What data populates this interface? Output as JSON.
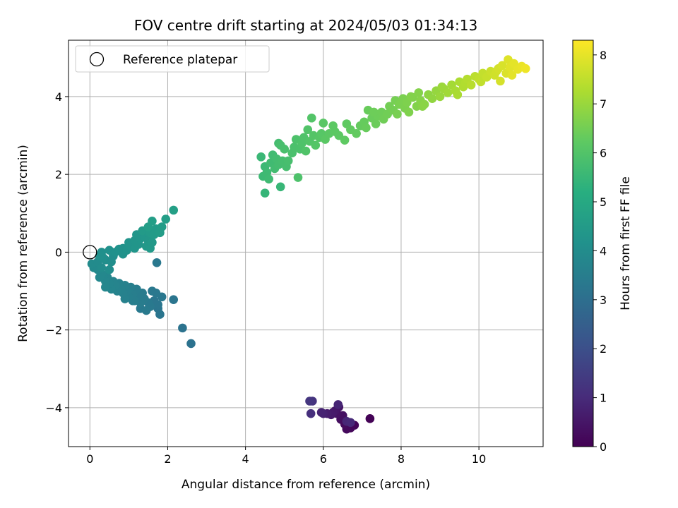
{
  "chart_data": {
    "type": "scatter",
    "title": "FOV centre drift starting at 2024/05/03 01:34:13",
    "xlabel": "Angular distance from reference (arcmin)",
    "ylabel": "Rotation from reference (arcmin)",
    "xlim": [
      -0.55,
      11.65
    ],
    "ylim": [
      -5.0,
      5.45
    ],
    "xticks": [
      0,
      2,
      4,
      6,
      8,
      10
    ],
    "yticks": [
      -4,
      -2,
      0,
      2,
      4
    ],
    "grid": true,
    "legend": {
      "location": "upper-left",
      "entries": [
        "Reference platepar"
      ]
    },
    "reference_point": {
      "x": 0,
      "y": 0,
      "label": "Reference platepar"
    },
    "colorbar": {
      "label": "Hours from first FF file",
      "colormap": "viridis",
      "range": [
        0,
        8.3
      ],
      "ticks": [
        0,
        1,
        2,
        3,
        4,
        5,
        6,
        7,
        8
      ]
    },
    "series": [
      {
        "points": [
          [
            7.2,
            -4.28,
            0.05
          ],
          [
            6.8,
            -4.45,
            0.1
          ],
          [
            6.7,
            -4.52,
            0.15
          ],
          [
            6.6,
            -4.55,
            0.2
          ],
          [
            6.55,
            -4.42,
            0.25
          ],
          [
            6.45,
            -4.3,
            0.3
          ],
          [
            6.5,
            -4.2,
            0.35
          ],
          [
            6.35,
            -4.15,
            0.4
          ],
          [
            6.4,
            -3.98,
            0.45
          ],
          [
            6.3,
            -4.08,
            0.5
          ],
          [
            6.25,
            -4.12,
            0.55
          ],
          [
            6.2,
            -4.18,
            0.6
          ],
          [
            6.1,
            -4.15,
            0.65
          ],
          [
            6.0,
            -4.15,
            0.75
          ],
          [
            5.95,
            -4.12,
            0.8
          ],
          [
            6.38,
            -3.92,
            0.85
          ],
          [
            6.6,
            -4.35,
            0.9
          ],
          [
            6.7,
            -4.38,
            0.95
          ],
          [
            5.68,
            -4.15,
            1.1
          ],
          [
            5.72,
            -3.83,
            1.2
          ],
          [
            5.65,
            -3.83,
            1.3
          ],
          [
            2.6,
            -2.35,
            3.1
          ],
          [
            2.38,
            -1.95,
            3.15
          ],
          [
            2.15,
            -1.22,
            3.2
          ],
          [
            1.8,
            -1.6,
            3.22
          ],
          [
            1.75,
            -1.35,
            3.25
          ],
          [
            1.85,
            -1.15,
            3.28
          ],
          [
            1.7,
            -1.05,
            3.3
          ],
          [
            1.6,
            -1.0,
            3.32
          ],
          [
            1.55,
            -1.4,
            3.34
          ],
          [
            1.5,
            -1.3,
            3.36
          ],
          [
            1.45,
            -1.5,
            3.38
          ],
          [
            1.4,
            -1.2,
            3.4
          ],
          [
            1.35,
            -1.05,
            3.42
          ],
          [
            1.3,
            -1.3,
            3.44
          ],
          [
            1.25,
            -1.15,
            3.46
          ],
          [
            1.2,
            -0.95,
            3.48
          ],
          [
            1.15,
            -1.25,
            3.5
          ],
          [
            1.1,
            -1.1,
            3.52
          ],
          [
            1.05,
            -0.9,
            3.54
          ],
          [
            1.0,
            -1.15,
            3.56
          ],
          [
            0.95,
            -1.0,
            3.58
          ],
          [
            0.9,
            -0.85,
            3.6
          ],
          [
            0.85,
            -1.05,
            3.62
          ],
          [
            0.8,
            -0.95,
            3.64
          ],
          [
            0.75,
            -0.8,
            3.66
          ],
          [
            0.7,
            -1.0,
            3.68
          ],
          [
            0.65,
            -0.85,
            3.7
          ],
          [
            0.6,
            -0.75,
            3.72
          ],
          [
            0.55,
            -0.95,
            3.74
          ],
          [
            0.5,
            -0.8,
            3.76
          ],
          [
            0.45,
            -0.65,
            3.78
          ],
          [
            0.4,
            -0.75,
            3.8
          ],
          [
            0.35,
            -0.6,
            3.82
          ],
          [
            0.3,
            -0.55,
            3.84
          ],
          [
            0.25,
            -0.65,
            3.86
          ],
          [
            0.2,
            -0.45,
            3.88
          ],
          [
            0.15,
            -0.35,
            3.9
          ],
          [
            0.1,
            -0.4,
            3.92
          ],
          [
            0.05,
            -0.3,
            3.94
          ],
          [
            0.2,
            -0.25,
            3.96
          ],
          [
            0.3,
            -0.4,
            3.98
          ],
          [
            0.4,
            -0.2,
            4.0
          ],
          [
            0.5,
            -0.45,
            4.02
          ],
          [
            0.55,
            -0.25,
            4.04
          ],
          [
            0.6,
            -0.1,
            4.06
          ],
          [
            0.35,
            -0.15,
            4.08
          ],
          [
            0.25,
            -0.1,
            4.1
          ],
          [
            0.3,
            0.0,
            4.12
          ],
          [
            0.5,
            0.05,
            4.14
          ],
          [
            0.65,
            0.0,
            4.16
          ],
          [
            0.75,
            0.08,
            4.18
          ],
          [
            0.85,
            0.1,
            4.2
          ],
          [
            0.95,
            0.05,
            4.22
          ],
          [
            1.05,
            0.15,
            4.24
          ],
          [
            1.0,
            0.25,
            4.26
          ],
          [
            1.15,
            0.3,
            4.28
          ],
          [
            1.25,
            0.2,
            4.3
          ],
          [
            1.3,
            0.35,
            4.32
          ],
          [
            1.2,
            0.45,
            4.34
          ],
          [
            1.4,
            0.4,
            4.36
          ],
          [
            1.5,
            0.3,
            4.38
          ],
          [
            1.45,
            0.15,
            4.4
          ],
          [
            1.55,
            0.1,
            4.42
          ],
          [
            1.6,
            0.25,
            4.44
          ],
          [
            1.35,
            0.55,
            4.46
          ],
          [
            1.55,
            0.5,
            4.48
          ],
          [
            1.65,
            0.45,
            4.5
          ],
          [
            1.7,
            0.6,
            4.52
          ],
          [
            1.8,
            0.5,
            4.54
          ],
          [
            1.85,
            0.65,
            4.56
          ],
          [
            1.5,
            0.65,
            4.58
          ],
          [
            1.6,
            0.8,
            4.6
          ],
          [
            1.95,
            0.85,
            4.62
          ],
          [
            2.15,
            1.08,
            4.65
          ],
          [
            1.72,
            -0.27,
            3.3
          ],
          [
            1.3,
            -1.45,
            3.36
          ],
          [
            0.7,
            -0.9,
            3.66
          ],
          [
            0.9,
            -1.2,
            3.6
          ],
          [
            0.4,
            -0.9,
            3.8
          ],
          [
            1.1,
            -1.25,
            3.5
          ],
          [
            1.65,
            -1.25,
            3.25
          ],
          [
            1.75,
            -1.45,
            3.22
          ],
          [
            1.15,
            0.1,
            4.28
          ],
          [
            0.85,
            -0.05,
            4.2
          ],
          [
            4.5,
            1.52,
            5.45
          ],
          [
            4.9,
            1.68,
            5.5
          ],
          [
            4.4,
            2.45,
            5.55
          ],
          [
            4.5,
            2.2,
            5.58
          ],
          [
            4.45,
            1.95,
            5.6
          ],
          [
            4.55,
            2.05,
            5.62
          ],
          [
            4.6,
            1.88,
            5.64
          ],
          [
            4.65,
            2.3,
            5.66
          ],
          [
            4.7,
            2.5,
            5.68
          ],
          [
            4.75,
            2.15,
            5.7
          ],
          [
            4.8,
            2.4,
            5.72
          ],
          [
            4.85,
            2.25,
            5.74
          ],
          [
            4.95,
            2.35,
            5.76
          ],
          [
            5.05,
            2.2,
            5.78
          ],
          [
            5.1,
            2.35,
            5.8
          ],
          [
            4.9,
            2.75,
            5.82
          ],
          [
            5.0,
            2.65,
            5.84
          ],
          [
            5.2,
            2.55,
            5.86
          ],
          [
            5.25,
            2.7,
            5.88
          ],
          [
            5.4,
            2.65,
            5.9
          ],
          [
            5.35,
            1.92,
            5.92
          ],
          [
            5.45,
            2.8,
            5.94
          ],
          [
            5.5,
            2.95,
            5.96
          ],
          [
            5.55,
            2.6,
            5.98
          ],
          [
            5.6,
            3.15,
            6.0
          ],
          [
            5.65,
            2.85,
            6.02
          ],
          [
            5.75,
            3.0,
            6.04
          ],
          [
            5.8,
            2.75,
            6.06
          ],
          [
            5.9,
            2.95,
            6.08
          ],
          [
            5.95,
            3.05,
            6.1
          ],
          [
            6.0,
            3.32,
            6.12
          ],
          [
            6.05,
            2.9,
            6.14
          ],
          [
            6.15,
            3.05,
            6.16
          ],
          [
            6.3,
            3.1,
            6.18
          ],
          [
            6.4,
            3.0,
            6.2
          ],
          [
            6.55,
            2.88,
            6.22
          ],
          [
            6.6,
            3.3,
            6.24
          ],
          [
            6.7,
            3.15,
            6.26
          ],
          [
            6.85,
            3.05,
            6.28
          ],
          [
            6.95,
            3.25,
            6.3
          ],
          [
            7.05,
            3.35,
            6.32
          ],
          [
            7.1,
            3.2,
            6.34
          ],
          [
            7.15,
            3.65,
            6.36
          ],
          [
            7.25,
            3.45,
            6.38
          ],
          [
            7.35,
            3.3,
            6.4
          ],
          [
            7.4,
            3.5,
            6.42
          ],
          [
            7.5,
            3.6,
            6.44
          ],
          [
            7.55,
            3.42,
            6.46
          ],
          [
            7.65,
            3.55,
            6.48
          ],
          [
            7.7,
            3.75,
            6.5
          ],
          [
            7.8,
            3.65,
            6.52
          ],
          [
            7.85,
            3.9,
            6.54
          ],
          [
            7.9,
            3.55,
            6.56
          ],
          [
            7.95,
            3.8,
            6.58
          ],
          [
            8.05,
            3.95,
            6.6
          ],
          [
            8.1,
            3.7,
            6.62
          ],
          [
            8.15,
            3.85,
            6.64
          ],
          [
            8.2,
            3.6,
            6.66
          ],
          [
            8.3,
            3.98,
            6.68
          ],
          [
            8.4,
            3.75,
            6.7
          ],
          [
            8.5,
            3.9,
            6.75
          ],
          [
            8.6,
            3.8,
            6.8
          ],
          [
            8.7,
            4.05,
            6.85
          ],
          [
            8.8,
            3.95,
            6.9
          ],
          [
            8.9,
            4.15,
            6.95
          ],
          [
            9.0,
            4.0,
            7.0
          ],
          [
            9.1,
            4.2,
            7.05
          ],
          [
            9.2,
            4.1,
            7.1
          ],
          [
            9.3,
            4.3,
            7.15
          ],
          [
            9.4,
            4.15,
            7.2
          ],
          [
            9.5,
            4.38,
            7.25
          ],
          [
            9.6,
            4.25,
            7.3
          ],
          [
            9.7,
            4.45,
            7.35
          ],
          [
            9.8,
            4.3,
            7.4
          ],
          [
            9.9,
            4.52,
            7.45
          ],
          [
            10.0,
            4.45,
            7.5
          ],
          [
            10.1,
            4.6,
            7.55
          ],
          [
            10.2,
            4.5,
            7.6
          ],
          [
            10.3,
            4.65,
            7.65
          ],
          [
            10.4,
            4.55,
            7.7
          ],
          [
            10.5,
            4.72,
            7.75
          ],
          [
            10.55,
            4.4,
            7.78
          ],
          [
            10.6,
            4.8,
            7.82
          ],
          [
            10.7,
            4.6,
            7.86
          ],
          [
            10.75,
            4.95,
            7.9
          ],
          [
            10.8,
            4.75,
            7.94
          ],
          [
            10.9,
            4.85,
            7.98
          ],
          [
            11.0,
            4.7,
            8.02
          ],
          [
            11.1,
            4.78,
            8.06
          ],
          [
            11.2,
            4.72,
            8.1
          ],
          [
            4.85,
            2.8,
            5.74
          ],
          [
            5.3,
            2.9,
            5.9
          ],
          [
            5.7,
            3.45,
            6.02
          ],
          [
            6.25,
            3.25,
            6.18
          ],
          [
            7.3,
            3.6,
            6.42
          ],
          [
            8.0,
            3.85,
            6.6
          ],
          [
            8.45,
            4.1,
            6.72
          ],
          [
            8.55,
            3.75,
            6.78
          ],
          [
            9.05,
            4.25,
            7.02
          ],
          [
            9.45,
            4.05,
            7.22
          ],
          [
            10.05,
            4.38,
            7.52
          ],
          [
            10.45,
            4.65,
            7.72
          ],
          [
            10.85,
            4.55,
            7.96
          ],
          [
            9.65,
            4.35,
            7.32
          ],
          [
            8.25,
            4.0,
            6.7
          ]
        ]
      }
    ]
  }
}
